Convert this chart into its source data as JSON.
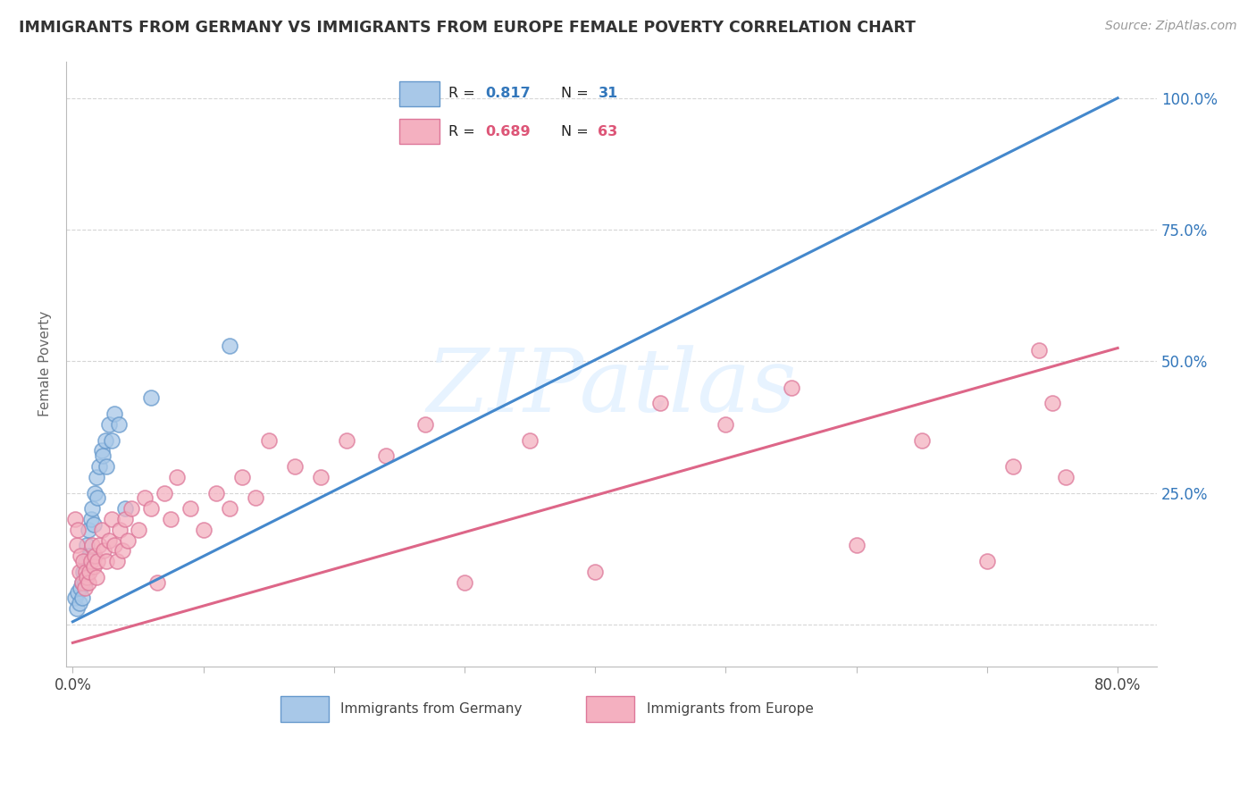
{
  "title": "IMMIGRANTS FROM GERMANY VS IMMIGRANTS FROM EUROPE FEMALE POVERTY CORRELATION CHART",
  "source": "Source: ZipAtlas.com",
  "ylabel": "Female Poverty",
  "xlim": [
    -0.005,
    0.83
  ],
  "ylim": [
    -0.08,
    1.07
  ],
  "legend_label1": "Immigrants from Germany",
  "legend_label2": "Immigrants from Europe",
  "R1": 0.817,
  "N1": 31,
  "R2": 0.689,
  "N2": 63,
  "color_blue": "#a8c8e8",
  "color_blue_edge": "#6699cc",
  "color_blue_line": "#4488cc",
  "color_pink": "#f4b0c0",
  "color_pink_edge": "#dd7799",
  "color_pink_line": "#dd6688",
  "color_blue_text": "#3377bb",
  "color_pink_text": "#dd5577",
  "background_color": "#ffffff",
  "grid_color": "#cccccc",
  "watermark_text": "ZIPatlas",
  "blue_line_x0": 0.0,
  "blue_line_y0": 0.005,
  "blue_line_x1": 0.8,
  "blue_line_y1": 1.0,
  "pink_line_x0": 0.0,
  "pink_line_y0": -0.035,
  "pink_line_x1": 0.8,
  "pink_line_y1": 0.525,
  "blue_points_x": [
    0.002,
    0.003,
    0.004,
    0.005,
    0.006,
    0.007,
    0.007,
    0.008,
    0.009,
    0.01,
    0.011,
    0.012,
    0.013,
    0.014,
    0.015,
    0.016,
    0.017,
    0.018,
    0.019,
    0.02,
    0.022,
    0.023,
    0.025,
    0.026,
    0.028,
    0.03,
    0.032,
    0.035,
    0.04,
    0.06,
    0.12
  ],
  "blue_points_y": [
    0.05,
    0.03,
    0.06,
    0.04,
    0.07,
    0.05,
    0.08,
    0.1,
    0.08,
    0.12,
    0.15,
    0.18,
    0.13,
    0.2,
    0.22,
    0.19,
    0.25,
    0.28,
    0.24,
    0.3,
    0.33,
    0.32,
    0.35,
    0.3,
    0.38,
    0.35,
    0.4,
    0.38,
    0.22,
    0.43,
    0.53
  ],
  "pink_points_x": [
    0.002,
    0.003,
    0.004,
    0.005,
    0.006,
    0.007,
    0.008,
    0.009,
    0.01,
    0.011,
    0.012,
    0.013,
    0.014,
    0.015,
    0.016,
    0.017,
    0.018,
    0.019,
    0.02,
    0.022,
    0.024,
    0.026,
    0.028,
    0.03,
    0.032,
    0.034,
    0.036,
    0.038,
    0.04,
    0.042,
    0.045,
    0.05,
    0.055,
    0.06,
    0.065,
    0.07,
    0.075,
    0.08,
    0.09,
    0.1,
    0.11,
    0.12,
    0.13,
    0.14,
    0.15,
    0.17,
    0.19,
    0.21,
    0.24,
    0.27,
    0.3,
    0.35,
    0.4,
    0.45,
    0.5,
    0.55,
    0.6,
    0.65,
    0.7,
    0.72,
    0.74,
    0.75,
    0.76
  ],
  "pink_points_y": [
    0.2,
    0.15,
    0.18,
    0.1,
    0.13,
    0.08,
    0.12,
    0.07,
    0.1,
    0.09,
    0.08,
    0.1,
    0.12,
    0.15,
    0.11,
    0.13,
    0.09,
    0.12,
    0.15,
    0.18,
    0.14,
    0.12,
    0.16,
    0.2,
    0.15,
    0.12,
    0.18,
    0.14,
    0.2,
    0.16,
    0.22,
    0.18,
    0.24,
    0.22,
    0.08,
    0.25,
    0.2,
    0.28,
    0.22,
    0.18,
    0.25,
    0.22,
    0.28,
    0.24,
    0.35,
    0.3,
    0.28,
    0.35,
    0.32,
    0.38,
    0.08,
    0.35,
    0.1,
    0.42,
    0.38,
    0.45,
    0.15,
    0.35,
    0.12,
    0.3,
    0.52,
    0.42,
    0.28
  ]
}
